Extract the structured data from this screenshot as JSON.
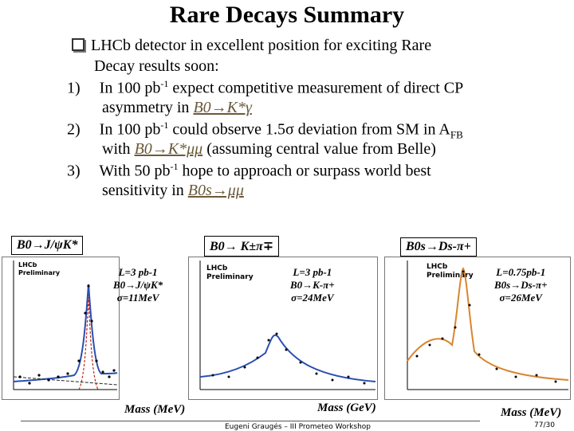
{
  "title": "Rare Decays Summary",
  "intro_line1": "LHCb detector in excellent position for exciting Rare",
  "intro_line2": "Decay results soon:",
  "item1_line1_pre": "In 100 pb",
  "item1_line1_post": " expect competitive measurement of direct CP",
  "item1_line2_pre": "asymmetry in ",
  "item1_decay": "B0→K*γ",
  "item2_line1_pre": "In 100 pb",
  "item2_line1_post": " could observe 1.5σ deviation from SM in A",
  "item2_afb_sub": "FB",
  "item2_line2_pre": "with ",
  "item2_decay": "B0→K*μμ",
  "item2_line2_post": " (assuming central value from Belle)",
  "item3_line1_pre": "With 50 pb",
  "item3_line1_post": "  hope to approach or surpass world best",
  "item3_line2_pre": "sensitivity in ",
  "item3_decay": "B0s→μμ",
  "superscript": "-1",
  "numbers": [
    "1)",
    "2)",
    "3)"
  ],
  "panels": {
    "p1": {
      "label": "B0→J/ψK*",
      "note": [
        "L=3 pb-1",
        "B0→J/ψK*",
        "σ=11MeV"
      ],
      "lhcb": [
        "LHCb",
        "Preliminary"
      ]
    },
    "p2": {
      "label": "B0→ K±π∓",
      "note": [
        "L=3 pb-1",
        "B0→K-π+",
        "σ=24MeV"
      ],
      "lhcb": [
        "LHCb",
        "Preliminary"
      ]
    },
    "p3": {
      "label": "B0s→Ds-π+",
      "note": [
        "L=0.75pb-1",
        "B0s→Ds-π+",
        "σ=26MeV"
      ],
      "lhcb": [
        "LHCb",
        "Preliminary"
      ]
    }
  },
  "mass_labels": [
    "Mass (MeV)",
    "Mass (GeV)",
    "Mass (MeV)"
  ],
  "footer_text": "Eugeni Graugés – III Prometeo Workshop",
  "page": "77/30",
  "colors": {
    "fit": "#2a4fb0",
    "signal": "#c0281e",
    "orange": "#d9862e"
  }
}
